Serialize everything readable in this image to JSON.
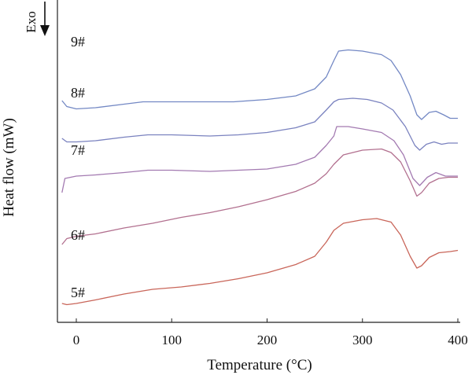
{
  "chart_data": {
    "type": "line",
    "title": "",
    "xlabel": "Temperature (°C)",
    "ylabel": "Heat flow (mW)",
    "xlim": [
      -20,
      400
    ],
    "x_ticks": [
      0,
      100,
      200,
      300,
      400
    ],
    "y_ticks_shown": false,
    "grid": false,
    "annotation": {
      "text": "Exo",
      "direction": "down"
    },
    "units_note": "y values are relative heat flow (arbitrary offset scale, larger = higher on plot)",
    "series": [
      {
        "name": "9#",
        "color": "#7388c4",
        "points": [
          [
            -15,
            86
          ],
          [
            -10,
            83.5
          ],
          [
            0,
            82.5
          ],
          [
            20,
            83
          ],
          [
            50,
            84.5
          ],
          [
            70,
            85.5
          ],
          [
            100,
            85.5
          ],
          [
            130,
            85.5
          ],
          [
            165,
            85.5
          ],
          [
            200,
            86.5
          ],
          [
            230,
            88
          ],
          [
            250,
            91
          ],
          [
            262,
            96
          ],
          [
            270,
            103
          ],
          [
            275,
            107
          ],
          [
            285,
            107.5
          ],
          [
            300,
            107
          ],
          [
            320,
            105.5
          ],
          [
            330,
            103
          ],
          [
            340,
            97
          ],
          [
            350,
            88
          ],
          [
            357,
            80
          ],
          [
            362,
            78
          ],
          [
            370,
            81
          ],
          [
            377,
            81.5
          ],
          [
            385,
            80
          ],
          [
            392,
            78.5
          ],
          [
            400,
            78.5
          ]
        ]
      },
      {
        "name": "8#",
        "color": "#7a82bf",
        "points": [
          [
            -15,
            70
          ],
          [
            -10,
            68.5
          ],
          [
            0,
            68.5
          ],
          [
            20,
            69
          ],
          [
            50,
            70.5
          ],
          [
            75,
            71.5
          ],
          [
            100,
            71.5
          ],
          [
            140,
            71
          ],
          [
            170,
            71.5
          ],
          [
            200,
            72.5
          ],
          [
            230,
            74.5
          ],
          [
            250,
            77
          ],
          [
            262,
            82
          ],
          [
            270,
            85.5
          ],
          [
            275,
            86.5
          ],
          [
            290,
            87
          ],
          [
            305,
            86.5
          ],
          [
            320,
            85
          ],
          [
            332,
            82
          ],
          [
            345,
            75
          ],
          [
            355,
            67
          ],
          [
            360,
            65
          ],
          [
            367,
            67.5
          ],
          [
            375,
            68.5
          ],
          [
            383,
            67.5
          ],
          [
            390,
            68
          ],
          [
            400,
            68
          ]
        ]
      },
      {
        "name": "7#",
        "color": "#a37ab1",
        "points": [
          [
            -15,
            47
          ],
          [
            -12,
            53
          ],
          [
            0,
            54
          ],
          [
            20,
            54.5
          ],
          [
            50,
            55.5
          ],
          [
            75,
            56.5
          ],
          [
            100,
            56.5
          ],
          [
            140,
            56
          ],
          [
            170,
            56.5
          ],
          [
            200,
            57
          ],
          [
            230,
            59
          ],
          [
            250,
            62
          ],
          [
            262,
            67
          ],
          [
            270,
            71
          ],
          [
            273,
            75
          ],
          [
            285,
            75
          ],
          [
            300,
            74
          ],
          [
            320,
            72.5
          ],
          [
            333,
            69
          ],
          [
            343,
            63
          ],
          [
            353,
            53
          ],
          [
            360,
            50
          ],
          [
            368,
            53.5
          ],
          [
            377,
            55.5
          ],
          [
            387,
            54
          ],
          [
            400,
            54
          ]
        ]
      },
      {
        "name": "6#",
        "color": "#b2708f",
        "points": [
          [
            -15,
            25
          ],
          [
            -10,
            27.5
          ],
          [
            0,
            28.5
          ],
          [
            20,
            29.5
          ],
          [
            50,
            32
          ],
          [
            80,
            34
          ],
          [
            110,
            36.5
          ],
          [
            140,
            38.5
          ],
          [
            170,
            41
          ],
          [
            200,
            44
          ],
          [
            230,
            47.5
          ],
          [
            250,
            51
          ],
          [
            262,
            55
          ],
          [
            270,
            59
          ],
          [
            280,
            63
          ],
          [
            300,
            65
          ],
          [
            320,
            65.5
          ],
          [
            330,
            64
          ],
          [
            340,
            60
          ],
          [
            350,
            52
          ],
          [
            357,
            45.5
          ],
          [
            362,
            47
          ],
          [
            370,
            51
          ],
          [
            380,
            53
          ],
          [
            390,
            53.5
          ],
          [
            400,
            53.5
          ]
        ]
      },
      {
        "name": "5#",
        "color": "#c9665a",
        "points": [
          [
            -15,
            0
          ],
          [
            -10,
            -0.5
          ],
          [
            0,
            0
          ],
          [
            20,
            1.5
          ],
          [
            50,
            4
          ],
          [
            80,
            6
          ],
          [
            110,
            7
          ],
          [
            140,
            8.5
          ],
          [
            170,
            10.5
          ],
          [
            200,
            13
          ],
          [
            230,
            16.5
          ],
          [
            250,
            20
          ],
          [
            262,
            26
          ],
          [
            270,
            31
          ],
          [
            280,
            34
          ],
          [
            300,
            35.5
          ],
          [
            315,
            36
          ],
          [
            330,
            34.5
          ],
          [
            340,
            29
          ],
          [
            350,
            20
          ],
          [
            357,
            15
          ],
          [
            362,
            16
          ],
          [
            370,
            19.5
          ],
          [
            380,
            21.5
          ],
          [
            392,
            22
          ],
          [
            400,
            22.5
          ]
        ]
      }
    ]
  }
}
